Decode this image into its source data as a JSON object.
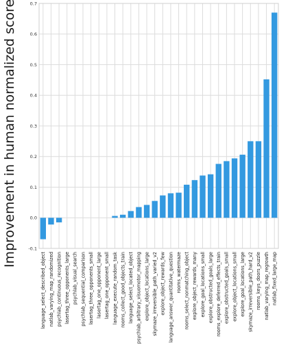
{
  "chart_data": {
    "type": "bar",
    "title": "",
    "xlabel": "",
    "ylabel": "Improvement in human normalized scores",
    "ylim": [
      -0.1,
      0.7
    ],
    "yticks": [
      -0.1,
      0.0,
      0.1,
      0.2,
      0.3,
      0.4,
      0.5,
      0.6,
      0.7
    ],
    "ytick_labels": [
      "-0.1",
      "0.0",
      "0.1",
      "0.2",
      "0.3",
      "0.4",
      "0.5",
      "0.6",
      "0.7"
    ],
    "grid": true,
    "legend": "none",
    "colors": {
      "bar": "#3399e0",
      "grid": "#dcdcdc",
      "frame": "#cfcfcf"
    },
    "categories": [
      "language_select_described_object",
      "natlab_varying_map_randomized",
      "psychlab_continuous_recognition",
      "lasertag_three_opponents_large",
      "psychlab_visual_search",
      "psychlab_sequential_comparison",
      "lasertag_three_opponents_small",
      "lasertag_one_opponent_large",
      "lasertag_one_opponent_small",
      "language_execute_random_task",
      "rooms_collect_good_objects_train",
      "language_select_located_object",
      "psychlab_arbitrary_visuomotor_mapping",
      "explore_object_locations_large",
      "skymaze_irreversible_path_varied_v2",
      "explore_object_rewards_few",
      "language_answer_quantitative_question",
      "rooms_watermaze",
      "rooms_select_nonmatching_object",
      "explore_object_rewards_many",
      "explore_goal_locations_small",
      "explore_obstructed_goals_large",
      "rooms_explore_deferred_effects_train",
      "explore_obstructed_goals_small",
      "explore_object_locations_small",
      "explore_goal_locations_large",
      "skymaze_irreversible_path_hard_v2",
      "rooms_keys_doors_puzzle",
      "natlab_varying_map_regrowth",
      "natlab_fixed_large_map"
    ],
    "values": [
      -0.07,
      -0.022,
      -0.015,
      0.0,
      0.0,
      0.0,
      0.0,
      0.0,
      0.0,
      0.006,
      0.01,
      0.022,
      0.035,
      0.042,
      0.055,
      0.073,
      0.08,
      0.082,
      0.108,
      0.123,
      0.138,
      0.142,
      0.176,
      0.185,
      0.194,
      0.206,
      0.25,
      0.25,
      0.452,
      0.67
    ]
  }
}
